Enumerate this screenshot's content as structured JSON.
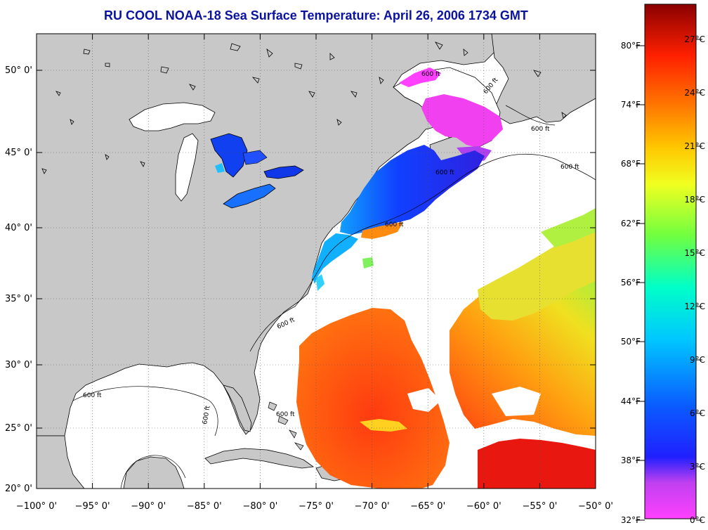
{
  "title": "RU COOL  NOAA-18  Sea Surface Temperature:  April 26, 2006 1734 GMT",
  "map": {
    "lon_labels": [
      "−100° 0'",
      "−95° 0'",
      "−90° 0'",
      "−85° 0'",
      "−80° 0'",
      "−75° 0'",
      "−70° 0'",
      "−65° 0'",
      "−60° 0'",
      "−55° 0'",
      "−50° 0'"
    ],
    "lat_labels": [
      "50° 0'",
      "45° 0'",
      "40° 0'",
      "35° 0'",
      "30° 0'",
      "25° 0'",
      "20° 0'"
    ],
    "isobath_label": "600 ft"
  },
  "colorbar": {
    "fahrenheit_labels": [
      "80°F",
      "74°F",
      "68°F",
      "62°F",
      "56°F",
      "50°F",
      "44°F",
      "38°F",
      "32°F"
    ],
    "celsius_labels": [
      "27°C",
      "24°C",
      "21°C",
      "18°C",
      "15°C",
      "12°C",
      "9°C",
      "6°C",
      "3°C",
      "0°C"
    ]
  },
  "colors": {
    "land": "#c8c8c8",
    "title": "#0a12a0",
    "ocean_nodata": "#ffffff"
  }
}
